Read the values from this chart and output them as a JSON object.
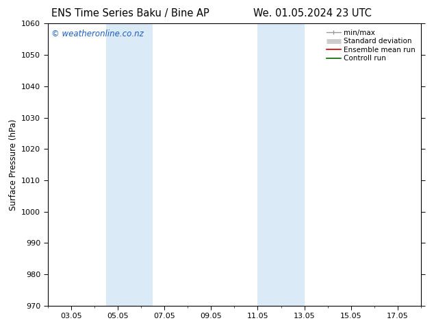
{
  "title_left": "ENS Time Series Baku / Bine AP",
  "title_right": "We. 01.05.2024 23 UTC",
  "ylabel": "Surface Pressure (hPa)",
  "ylim": [
    970,
    1060
  ],
  "yticks": [
    970,
    980,
    990,
    1000,
    1010,
    1020,
    1030,
    1040,
    1050,
    1060
  ],
  "xlim": [
    2.0,
    18.0
  ],
  "xtick_labels": [
    "03.05",
    "05.05",
    "07.05",
    "09.05",
    "11.05",
    "13.05",
    "15.05",
    "17.05"
  ],
  "xtick_positions": [
    3,
    5,
    7,
    9,
    11,
    13,
    15,
    17
  ],
  "shaded_regions": [
    {
      "x_start": 4.5,
      "x_end": 6.5,
      "color": "#daeaf7"
    },
    {
      "x_start": 11.0,
      "x_end": 13.0,
      "color": "#daeaf7"
    }
  ],
  "watermark_text": "© weatheronline.co.nz",
  "watermark_color": "#1a5bc4",
  "watermark_fontsize": 8.5,
  "legend_entries": [
    {
      "label": "min/max",
      "color": "#999999",
      "lw": 1.0
    },
    {
      "label": "Standard deviation",
      "color": "#cccccc",
      "lw": 5
    },
    {
      "label": "Ensemble mean run",
      "color": "#cc0000",
      "lw": 1.2
    },
    {
      "label": "Controll run",
      "color": "#006600",
      "lw": 1.2
    }
  ],
  "bg_color": "#ffffff",
  "title_fontsize": 10.5,
  "axis_label_fontsize": 8.5,
  "tick_fontsize": 8,
  "legend_fontsize": 7.5
}
